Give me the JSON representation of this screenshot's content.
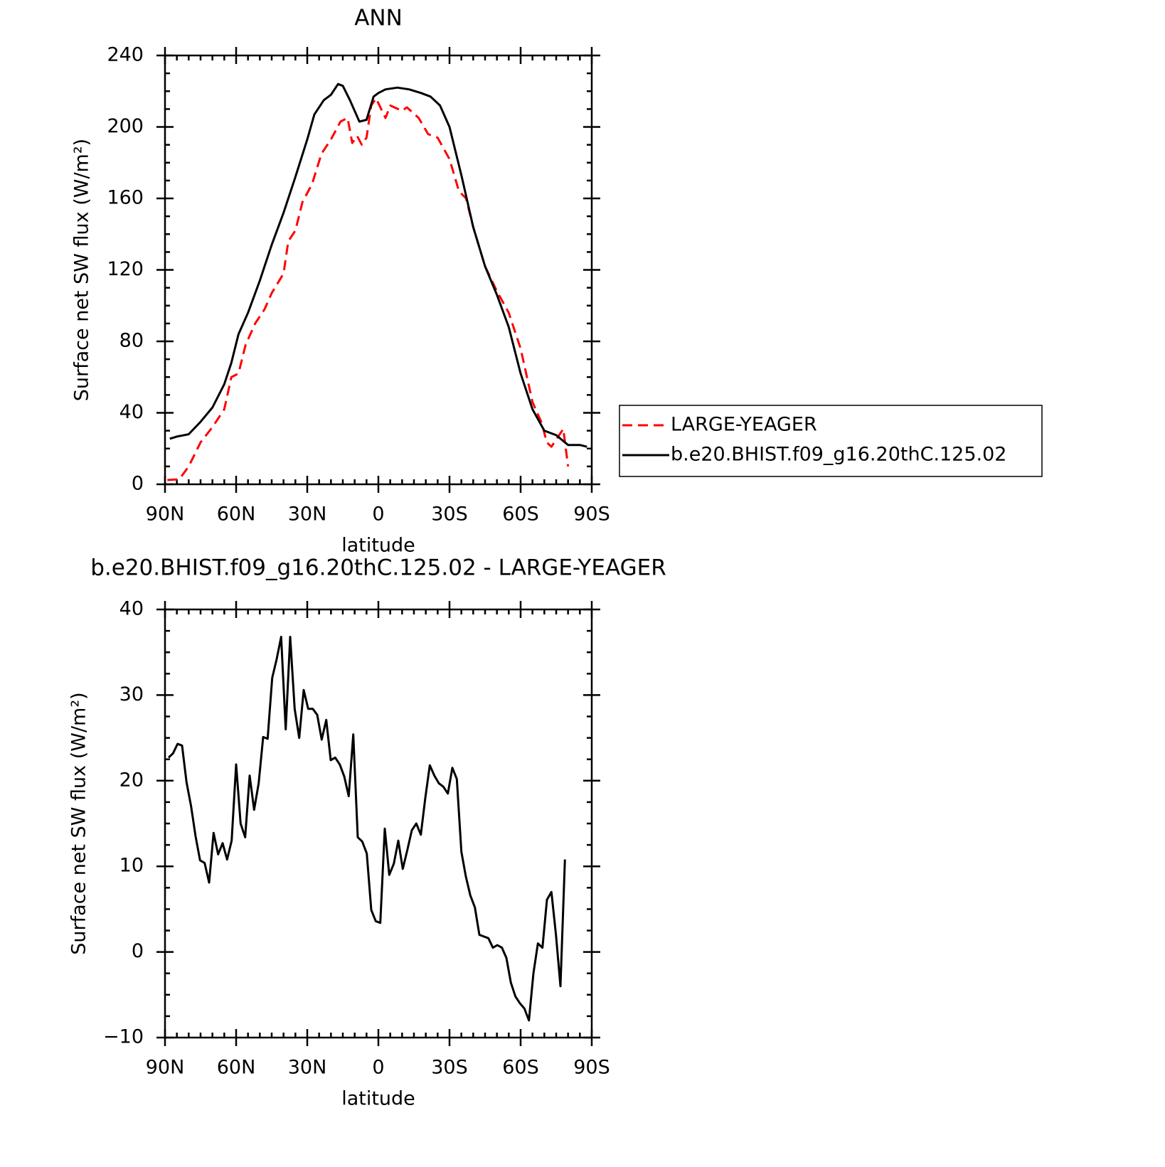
{
  "chart_data": [
    {
      "type": "line",
      "title": "ANN",
      "x_label": "latitude",
      "y_label": "Surface net SW flux (W/m²)",
      "xlim": [
        90,
        -90
      ],
      "xticks": [
        {
          "value": 90,
          "label": "90N"
        },
        {
          "value": 60,
          "label": "60N"
        },
        {
          "value": 30,
          "label": "30N"
        },
        0,
        {
          "value": -30,
          "label": "30S"
        },
        {
          "value": -60,
          "label": "60S"
        },
        {
          "value": -90,
          "label": "90S"
        }
      ],
      "ylim": [
        0,
        240
      ],
      "yticks": [
        0,
        40,
        80,
        120,
        160,
        200,
        240
      ],
      "legend_position": "outside-right",
      "series": [
        {
          "name": "LARGE-YEAGER",
          "color": "#ff0000",
          "dashed": true,
          "x": [
            89,
            84,
            80,
            75,
            70,
            65,
            62,
            59,
            56,
            52,
            48,
            45,
            40,
            38,
            35,
            32,
            28,
            24,
            20,
            16,
            13,
            11,
            9,
            7,
            5,
            3,
            1,
            -3,
            -5,
            -10,
            -12,
            -17,
            -21,
            -25,
            -30,
            -34,
            -37,
            -40,
            -45,
            -50,
            -55,
            -60,
            -65,
            -69,
            -71,
            -73,
            -75,
            -78,
            -80
          ],
          "values": [
            2.4,
            2.8,
            10,
            23.5,
            32,
            42,
            60,
            62,
            78,
            90,
            98,
            107,
            118,
            136,
            142,
            158,
            168,
            185,
            193,
            203,
            205,
            191,
            195,
            190,
            194,
            212,
            216,
            205,
            212,
            209,
            211,
            205,
            196,
            194,
            182,
            164,
            160,
            144,
            122,
            108,
            96,
            76,
            46,
            34,
            23.5,
            21,
            25,
            31,
            10
          ]
        },
        {
          "name": "b.e20.BHIST.f09_g16.20thC.125.02",
          "color": "#000000",
          "dashed": false,
          "x": [
            88,
            85,
            80,
            75,
            70,
            65,
            62,
            59,
            55,
            50,
            45,
            40,
            35,
            30,
            27,
            23,
            20,
            17,
            15,
            12,
            8,
            5,
            2,
            0,
            -3,
            -8,
            -13,
            -18,
            -22,
            -26,
            -30,
            -35,
            -40,
            -45,
            -50,
            -55,
            -60,
            -65,
            -70,
            -75,
            -80,
            -85,
            -88
          ],
          "values": [
            25.5,
            26.7,
            28,
            35,
            43,
            56,
            68,
            84,
            96,
            114,
            134,
            152,
            172,
            193,
            207,
            215,
            218,
            224,
            223,
            215,
            203,
            204,
            217,
            219,
            221,
            222,
            221,
            219,
            217,
            212,
            200,
            173,
            144,
            122,
            106,
            88,
            62,
            42,
            30,
            27.5,
            22,
            22,
            21
          ]
        }
      ]
    },
    {
      "type": "line",
      "title": "b.e20.BHIST.f09_g16.20thC.125.02 - LARGE-YEAGER",
      "x_label": "latitude",
      "y_label": "Surface net SW flux (W/m²)",
      "xlim": [
        90,
        -90
      ],
      "xticks": [
        {
          "value": 90,
          "label": "90N"
        },
        {
          "value": 60,
          "label": "60N"
        },
        {
          "value": 30,
          "label": "30N"
        },
        0,
        {
          "value": -30,
          "label": "30S"
        },
        {
          "value": -60,
          "label": "60S"
        },
        {
          "value": -90,
          "label": "90S"
        }
      ],
      "ylim": [
        -10,
        40
      ],
      "yticks": [
        {
          "value": -10,
          "label": "−10"
        },
        0,
        10,
        20,
        30,
        40
      ],
      "series": [
        {
          "color": "#000000",
          "dashed": false,
          "x": [
            88.5,
            86.6,
            84.7,
            82.8,
            80.9,
            79,
            77.1,
            75.2,
            73.3,
            71.4,
            69.5,
            67.6,
            65.7,
            63.8,
            61.9,
            60,
            58.1,
            56.2,
            54.3,
            52.4,
            50.5,
            48.6,
            46.7,
            44.8,
            42.9,
            41,
            39.1,
            37.2,
            35.3,
            33.4,
            31.5,
            29.6,
            27.7,
            25.8,
            23.9,
            22,
            20.1,
            18.2,
            16.3,
            14.4,
            12.5,
            10.6,
            8.7,
            6.8,
            4.9,
            3,
            1.1,
            -0.8,
            -2.7,
            -4.6,
            -6.5,
            -8.4,
            -10.3,
            -12.2,
            -14.1,
            -16,
            -17.9,
            -19.8,
            -21.7,
            -23.6,
            -25.5,
            -27.4,
            -29.3,
            -31.2,
            -33.1,
            -35,
            -36.9,
            -38.8,
            -40.7,
            -42.6,
            -44.5,
            -46.4,
            -48.3,
            -50.2,
            -52.1,
            -54,
            -55.9,
            -57.8,
            -59.7,
            -61.6,
            -63.5,
            -65.4,
            -67.3,
            -69.2,
            -71.1,
            -73,
            -74.9,
            -76.8,
            -78.7
          ],
          "values": [
            22.7,
            23.2,
            24.3,
            24.1,
            19.8,
            17,
            13.5,
            10.7,
            10.4,
            8.1,
            13.9,
            11.4,
            12.7,
            10.8,
            13,
            21.9,
            15,
            13.4,
            20.6,
            16.6,
            19.7,
            25.1,
            24.9,
            32,
            34.2,
            36.8,
            26,
            36.8,
            28.4,
            25,
            30.6,
            28.4,
            28.4,
            27.7,
            24.8,
            27.1,
            22.4,
            22.7,
            21.9,
            20.5,
            18.2,
            25.4,
            13.4,
            12.9,
            11.5,
            4.9,
            3.6,
            3.4,
            14.4,
            9,
            10.3,
            13,
            9.7,
            11.9,
            14.2,
            15,
            13.7,
            18,
            21.8,
            20.6,
            19.7,
            19.3,
            18.5,
            21.5,
            20.2,
            11.7,
            8.8,
            6.6,
            5.2,
            2,
            1.8,
            1.6,
            0.5,
            0.8,
            0.5,
            -0.7,
            -3.6,
            -5.2,
            -6,
            -6.6,
            -8,
            -2.5,
            1,
            0.5,
            6.1,
            7,
            2,
            -4,
            10.8
          ]
        }
      ]
    }
  ]
}
